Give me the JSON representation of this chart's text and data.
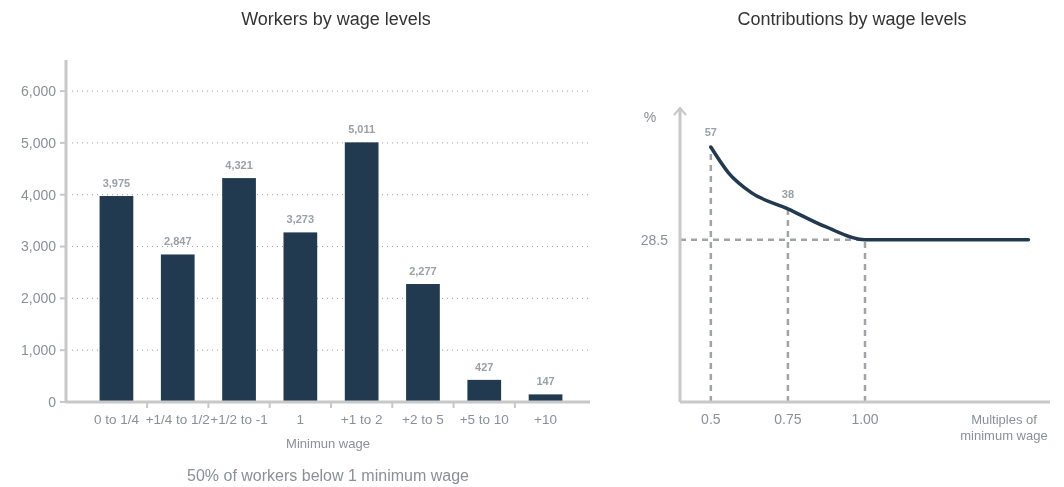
{
  "chart_data": [
    {
      "type": "bar",
      "title": "Workers by wage levels",
      "xlabel": "Minimun wage",
      "categories": [
        "0 to 1/4",
        "+1/4 to 1/2",
        "+1/2 to -1",
        "1",
        "+1 to 2",
        "+2 to 5",
        "+5 to 10",
        "+10"
      ],
      "values": [
        3975,
        2847,
        4321,
        3273,
        5011,
        2277,
        427,
        147
      ],
      "color": "#223a50",
      "value_labels": [
        "3,975",
        "2,847",
        "4,321",
        "3,273",
        "5,011",
        "2,277",
        "427",
        "147"
      ],
      "ylim": [
        0,
        6600
      ],
      "yticks": [
        0,
        {
          "value": 1000,
          "label": "1,000"
        },
        {
          "value": 2000,
          "label": "2,000"
        },
        {
          "value": 3000,
          "label": "3,000"
        },
        {
          "value": 4000,
          "label": "4,000"
        },
        {
          "value": 5000,
          "label": "5,000"
        },
        {
          "value": 6000,
          "label": "6,000"
        }
      ],
      "grid": "y",
      "annotations": [
        "50% of workers below 1 minimum wage"
      ]
    },
    {
      "type": "line",
      "title": "Contributions by wage levels",
      "xlabel": "Multiples of minimum wage",
      "ylabel": "%",
      "series": [
        {
          "color": "#223a50",
          "x": [
            0.5,
            0.558,
            0.631,
            0.75,
            0.872,
            1.0,
            1.53
          ],
          "values": [
            57,
            49,
            43,
            38,
            32.5,
            28.5,
            28.5
          ],
          "value_labels": [
            "57",
            null,
            null,
            "38",
            null,
            null,
            null
          ]
        }
      ],
      "xlim": [
        0.4,
        1.6
      ],
      "xticks": [
        0.5,
        0.75,
        {
          "value": 1.0,
          "label": "1.00"
        }
      ],
      "ylim": [
        -21.4,
        69
      ],
      "ref_lines": [
        {
          "axis": "x",
          "value": 0.5,
          "color": "#a0a4a8",
          "line_style": "dashed"
        },
        {
          "axis": "x",
          "value": 0.75,
          "color": "#a0a4a8",
          "line_style": "dashed"
        },
        {
          "axis": "x",
          "value": 1.0,
          "color": "#a0a4a8",
          "line_style": "dashed"
        },
        {
          "axis": "y",
          "value": 28.5,
          "label": "28.5",
          "color": "#a0a4a8",
          "line_style": "dashed"
        }
      ],
      "marker": "none",
      "line_style": "solid"
    }
  ]
}
